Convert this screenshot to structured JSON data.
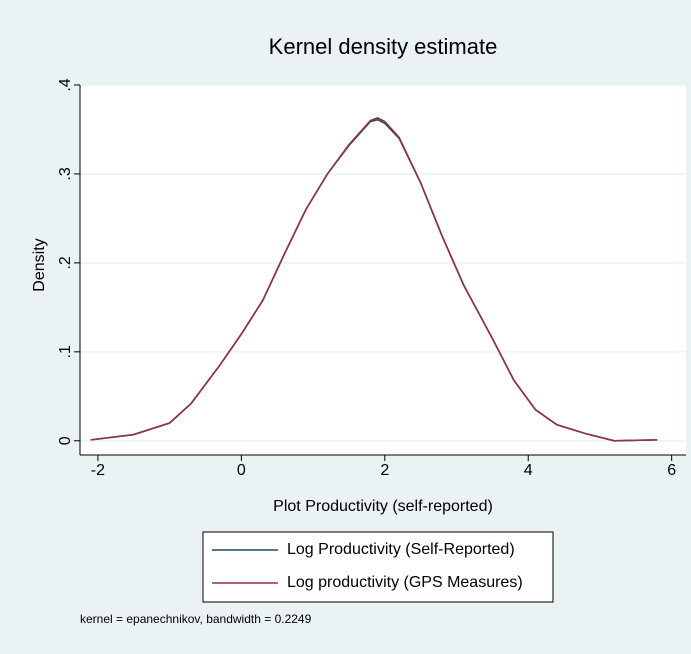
{
  "chart_data": {
    "type": "line",
    "title": "Kernel density estimate",
    "x_label": "Plot Productivity (self-reported)",
    "y_label": "Density",
    "note": "kernel = epanechnikov, bandwidth = 0.2249",
    "x": [
      -2.1,
      -1.5,
      -1.0,
      -0.7,
      -0.3,
      0,
      0.3,
      0.6,
      0.9,
      1.2,
      1.5,
      1.8,
      1.9,
      2.0,
      2.2,
      2.5,
      2.8,
      3.1,
      3.5,
      3.8,
      4.1,
      4.4,
      4.8,
      5.2,
      5.8
    ],
    "series": [
      {
        "name": "Log Productivity (Self-Reported)",
        "color": "#1a476f",
        "values": [
          0.001,
          0.007,
          0.02,
          0.042,
          0.085,
          0.12,
          0.158,
          0.21,
          0.26,
          0.3,
          0.332,
          0.359,
          0.361,
          0.357,
          0.34,
          0.29,
          0.23,
          0.175,
          0.115,
          0.068,
          0.035,
          0.018,
          0.008,
          0.0,
          0.001
        ]
      },
      {
        "name": "Log productivity (GPS Measures)",
        "color": "#90353b",
        "values": [
          0.001,
          0.007,
          0.02,
          0.042,
          0.085,
          0.12,
          0.158,
          0.21,
          0.26,
          0.3,
          0.333,
          0.36,
          0.363,
          0.359,
          0.341,
          0.29,
          0.23,
          0.175,
          0.115,
          0.068,
          0.035,
          0.018,
          0.008,
          0.0,
          0.001
        ]
      }
    ],
    "xlim": [
      -2.25,
      6.2
    ],
    "xticks": [
      -2,
      0,
      2,
      4,
      6
    ],
    "ylim": [
      -0.016,
      0.4
    ],
    "yticks": [
      0,
      {
        "value": 0.1,
        "label": ".1"
      },
      {
        "value": 0.2,
        "label": ".2"
      },
      {
        "value": 0.3,
        "label": ".3"
      },
      {
        "value": 0.4,
        "label": ".4"
      }
    ],
    "grid": true,
    "legend_position": "bottom"
  }
}
